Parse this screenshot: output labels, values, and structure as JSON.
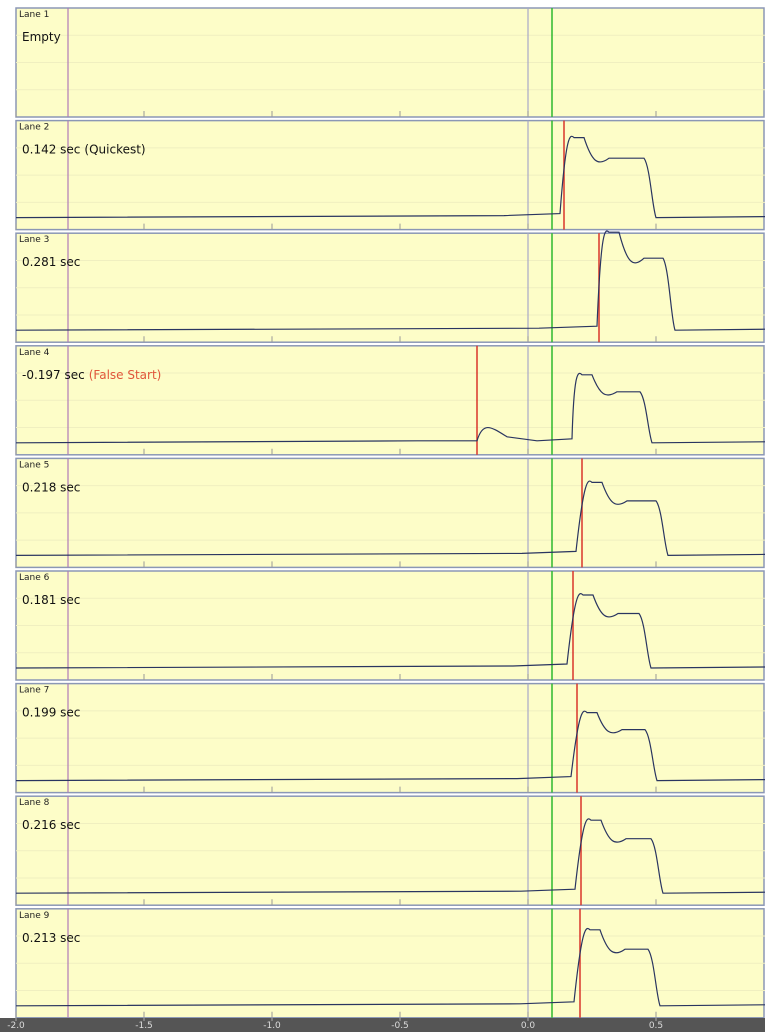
{
  "lanes": [
    {
      "label": "Lane 1",
      "result": "Empty"
    },
    {
      "label": "Lane 2",
      "result": "0.142 sec",
      "note": "(Quickest)"
    },
    {
      "label": "Lane 3",
      "result": "0.281 sec"
    },
    {
      "label": "Lane 4",
      "result": "-0.197 sec",
      "note": "(False Start)"
    },
    {
      "label": "Lane 5",
      "result": "0.218 sec"
    },
    {
      "label": "Lane 6",
      "result": "0.181 sec"
    },
    {
      "label": "Lane 7",
      "result": "0.199 sec"
    },
    {
      "label": "Lane 8",
      "result": "0.216 sec"
    },
    {
      "label": "Lane 9",
      "result": "0.213 sec"
    }
  ],
  "axis": {
    "ticks": [
      {
        "value": -2.0,
        "label": "-2.0"
      },
      {
        "value": -1.5,
        "label": "-1.5"
      },
      {
        "value": -1.0,
        "label": "-1.0"
      },
      {
        "value": -0.5,
        "label": "-0.5"
      },
      {
        "value": 0.0,
        "label": "0.0"
      },
      {
        "value": 0.5,
        "label": "0.5"
      }
    ]
  }
}
